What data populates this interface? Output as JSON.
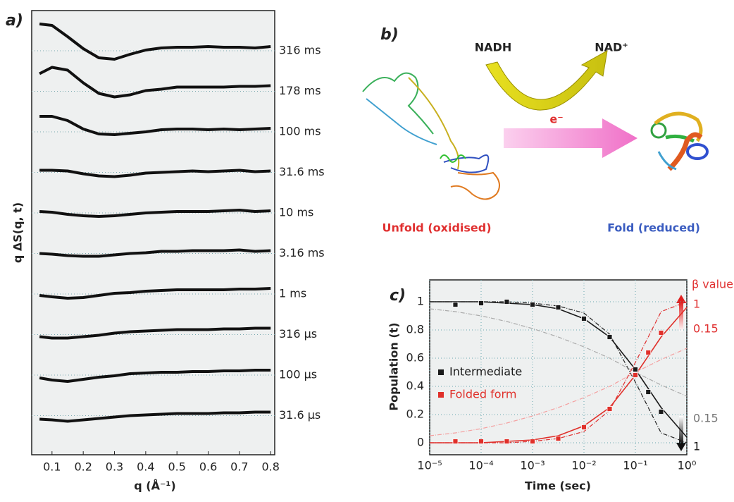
{
  "chart_data": [
    {
      "type": "line",
      "panel_label": "a)",
      "xlabel": "q (Å⁻¹)",
      "ylabel": "q ΔS(q, t)",
      "xlim": [
        0.035,
        0.813
      ],
      "xticks": [
        0.1,
        0.2,
        0.3,
        0.4,
        0.5,
        0.6,
        0.7,
        0.8
      ],
      "grid": false,
      "x": [
        0.06,
        0.1,
        0.15,
        0.2,
        0.25,
        0.3,
        0.35,
        0.4,
        0.45,
        0.5,
        0.55,
        0.6,
        0.65,
        0.7,
        0.75,
        0.8
      ],
      "series": [
        {
          "name": "316 ms",
          "color": "#111111",
          "values": [
            3.8,
            3.6,
            2.0,
            0.3,
            -1.0,
            -1.2,
            -0.5,
            0.1,
            0.4,
            0.5,
            0.5,
            0.6,
            0.5,
            0.5,
            0.4,
            0.6
          ]
        },
        {
          "name": "178 ms",
          "color": "#111111",
          "values": [
            2.5,
            3.4,
            3.0,
            1.2,
            -0.3,
            -0.8,
            -0.5,
            0.1,
            0.3,
            0.6,
            0.6,
            0.6,
            0.6,
            0.7,
            0.7,
            0.8
          ]
        },
        {
          "name": "100 ms",
          "color": "#111111",
          "values": [
            2.2,
            2.2,
            1.6,
            0.4,
            -0.3,
            -0.4,
            -0.2,
            0.0,
            0.3,
            0.4,
            0.4,
            0.3,
            0.4,
            0.3,
            0.4,
            0.5
          ]
        },
        {
          "name": "31.6 ms",
          "color": "#111111",
          "values": [
            0.3,
            0.3,
            0.2,
            -0.2,
            -0.5,
            -0.6,
            -0.4,
            -0.1,
            0.0,
            0.1,
            0.2,
            0.1,
            0.2,
            0.3,
            0.1,
            0.2
          ]
        },
        {
          "name": "10 ms",
          "color": "#111111",
          "values": [
            0.2,
            0.1,
            -0.2,
            -0.4,
            -0.5,
            -0.4,
            -0.2,
            0.0,
            0.1,
            0.2,
            0.2,
            0.2,
            0.3,
            0.4,
            0.2,
            0.3
          ]
        },
        {
          "name": "3.16 ms",
          "color": "#111111",
          "values": [
            0.0,
            -0.1,
            -0.3,
            -0.4,
            -0.4,
            -0.2,
            0.0,
            0.1,
            0.3,
            0.3,
            0.4,
            0.4,
            0.4,
            0.5,
            0.3,
            0.4
          ]
        },
        {
          "name": "1 ms",
          "color": "#111111",
          "values": [
            -0.2,
            -0.4,
            -0.6,
            -0.5,
            -0.2,
            0.1,
            0.2,
            0.4,
            0.5,
            0.6,
            0.6,
            0.6,
            0.6,
            0.7,
            0.7,
            0.8
          ]
        },
        {
          "name": "316 µs",
          "color": "#111111",
          "values": [
            -0.3,
            -0.5,
            -0.5,
            -0.3,
            -0.1,
            0.2,
            0.4,
            0.5,
            0.6,
            0.7,
            0.7,
            0.7,
            0.8,
            0.8,
            0.9,
            0.9
          ]
        },
        {
          "name": "100 µs",
          "color": "#111111",
          "values": [
            -0.4,
            -0.7,
            -0.9,
            -0.6,
            -0.3,
            -0.1,
            0.2,
            0.3,
            0.4,
            0.4,
            0.5,
            0.5,
            0.6,
            0.6,
            0.7,
            0.7
          ]
        },
        {
          "name": "31.6 µs",
          "color": "#111111",
          "values": [
            -0.5,
            -0.6,
            -0.8,
            -0.6,
            -0.4,
            -0.2,
            0.0,
            0.1,
            0.2,
            0.3,
            0.3,
            0.3,
            0.4,
            0.4,
            0.5,
            0.5
          ]
        }
      ]
    },
    {
      "type": "scatter",
      "panel_label": "c)",
      "xlabel": "Time (sec)",
      "ylabel": "Population (t)",
      "xscale": "log",
      "xlim": [
        1e-05,
        1
      ],
      "ylim": [
        -0.085,
        1.155
      ],
      "grid": true,
      "xticks": [
        {
          "value": 1e-05,
          "label": "10⁻⁵"
        },
        {
          "value": 0.0001,
          "label": "10⁻⁴"
        },
        {
          "value": 0.001,
          "label": "10⁻³"
        },
        {
          "value": 0.01,
          "label": "10⁻²"
        },
        {
          "value": 0.1,
          "label": "10⁻¹"
        },
        {
          "value": 1,
          "label": "10⁰"
        }
      ],
      "yticks": [
        0,
        0.2,
        0.4,
        0.6,
        0.8,
        1
      ],
      "x": [
        3.16e-05,
        0.0001,
        0.000316,
        0.001,
        0.00316,
        0.01,
        0.0316,
        0.1,
        0.178,
        0.316
      ],
      "series": [
        {
          "name": "Intermediate",
          "color": "#1a1a1a",
          "values": [
            0.98,
            0.99,
            1.0,
            0.98,
            0.96,
            0.88,
            0.75,
            0.52,
            0.36,
            0.22
          ]
        },
        {
          "name": "Folded form",
          "color": "#e0302a",
          "values": [
            0.01,
            0.01,
            0.01,
            0.01,
            0.03,
            0.11,
            0.24,
            0.48,
            0.64,
            0.78
          ]
        }
      ],
      "fit_x": [
        1e-05,
        3.16e-05,
        0.0001,
        0.000316,
        0.001,
        0.00316,
        0.01,
        0.0316,
        0.1,
        0.316,
        1
      ],
      "fits": [
        {
          "color": "#1a1a1a",
          "dashed": false,
          "values": [
            1,
            1,
            1,
            0.99,
            0.98,
            0.95,
            0.88,
            0.75,
            0.52,
            0.25,
            0.04
          ]
        },
        {
          "color": "#222222",
          "dashed": true,
          "values": [
            1,
            1,
            1,
            1,
            0.99,
            0.97,
            0.92,
            0.77,
            0.43,
            0.07,
            0
          ]
        },
        {
          "color": "#aaaaaa",
          "dashed": true,
          "values": [
            0.95,
            0.93,
            0.9,
            0.86,
            0.81,
            0.75,
            0.68,
            0.6,
            0.5,
            0.41,
            0.33
          ]
        },
        {
          "color": "#e0302a",
          "dashed": false,
          "values": [
            0,
            0,
            0,
            0.01,
            0.02,
            0.05,
            0.12,
            0.25,
            0.48,
            0.75,
            0.96
          ]
        },
        {
          "color": "#e03030",
          "dashed": true,
          "values": [
            0,
            0,
            0,
            0,
            0.01,
            0.03,
            0.08,
            0.23,
            0.57,
            0.93,
            1
          ]
        },
        {
          "color": "#f4a0a0",
          "dashed": true,
          "values": [
            0.05,
            0.07,
            0.1,
            0.14,
            0.19,
            0.25,
            0.32,
            0.4,
            0.5,
            0.59,
            0.67
          ]
        }
      ],
      "beta_legend": {
        "title": "β value",
        "red": [
          1,
          0.15
        ],
        "black": [
          0.15,
          1
        ]
      }
    }
  ],
  "diagram": {
    "panel_label": "b)",
    "cofactor_in": "NADH",
    "cofactor_out": "NAD⁺",
    "electron": "e⁻",
    "unfolded_label": "Unfold (oxidised)",
    "folded_label": "Fold (reduced)"
  }
}
